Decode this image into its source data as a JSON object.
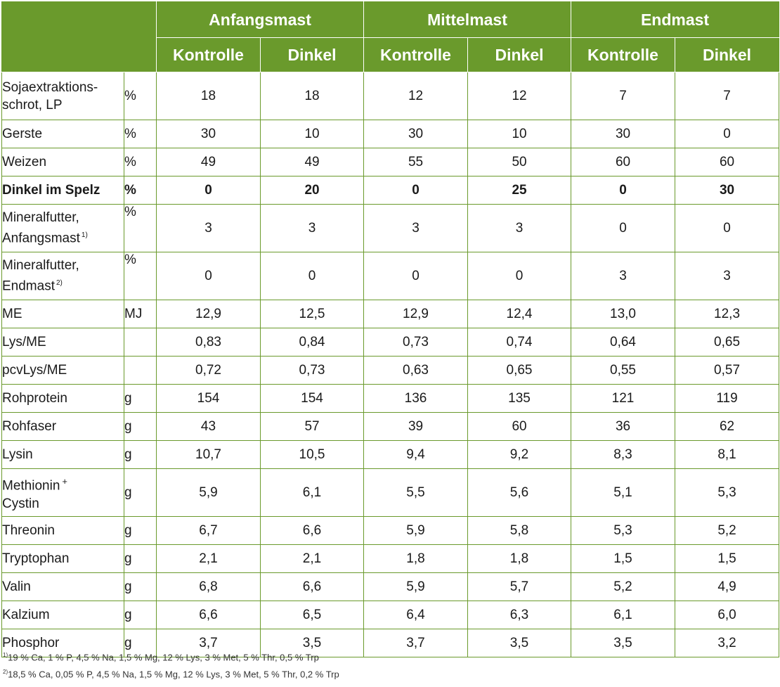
{
  "colors": {
    "header_bg": "#6a9a2c",
    "header_text": "#ffffff",
    "grid": "#6a9a2c"
  },
  "table": {
    "phases": [
      "Anfangsmast",
      "Mittelmast",
      "Endmast"
    ],
    "subheaders": [
      "Kontrolle",
      "Dinkel",
      "Kontrolle",
      "Dinkel",
      "Kontrolle",
      "Dinkel"
    ],
    "rows": [
      {
        "label": "Sojaextraktions-",
        "label2": "schrot, LP",
        "unit": "%",
        "values": [
          "18",
          "18",
          "12",
          "12",
          "7",
          "7"
        ]
      },
      {
        "label": "Gerste",
        "unit": "%",
        "values": [
          "30",
          "10",
          "30",
          "10",
          "30",
          "0"
        ]
      },
      {
        "label": "Weizen",
        "unit": "%",
        "values": [
          "49",
          "49",
          "55",
          "50",
          "60",
          "60"
        ]
      },
      {
        "label": "Dinkel im Spelz",
        "unit": "%",
        "values": [
          "0",
          "20",
          "0",
          "25",
          "0",
          "30"
        ]
      },
      {
        "label": "Mineralfutter,",
        "label2": "Anfangsmast",
        "ref": "1)",
        "unit": "%",
        "values": [
          "3",
          "3",
          "3",
          "3",
          "0",
          "0"
        ]
      },
      {
        "label": "Mineralfutter,",
        "label2": "Endmast",
        "ref": "2)",
        "unit": "%",
        "values": [
          "0",
          "0",
          "0",
          "0",
          "3",
          "3"
        ]
      },
      {
        "label": "ME",
        "unit": "MJ",
        "values": [
          "12,9",
          "12,5",
          "12,9",
          "12,4",
          "13,0",
          "12,3"
        ]
      },
      {
        "label": "Lys/ME",
        "unit": "",
        "values": [
          "0,83",
          "0,84",
          "0,73",
          "0,74",
          "0,64",
          "0,65"
        ]
      },
      {
        "label": "pcvLys/ME",
        "unit": "",
        "values": [
          "0,72",
          "0,73",
          "0,63",
          "0,65",
          "0,55",
          "0,57"
        ]
      },
      {
        "label": "Rohprotein",
        "unit": "g",
        "values": [
          "154",
          "154",
          "136",
          "135",
          "121",
          "119"
        ]
      },
      {
        "label": "Rohfaser",
        "unit": "g",
        "values": [
          "43",
          "57",
          "39",
          "60",
          "36",
          "62"
        ]
      },
      {
        "label": "Lysin",
        "unit": "g",
        "values": [
          "10,7",
          "10,5",
          "9,4",
          "9,2",
          "8,3",
          "8,1"
        ]
      },
      {
        "label": "Methionin",
        "plus": "+",
        "label2": "Cystin",
        "unit": "g",
        "values": [
          "5,9",
          "6,1",
          "5,5",
          "5,6",
          "5,1",
          "5,3"
        ]
      },
      {
        "label": "Threonin",
        "unit": "g",
        "values": [
          "6,7",
          "6,6",
          "5,9",
          "5,8",
          "5,3",
          "5,2"
        ]
      },
      {
        "label": "Tryptophan",
        "unit": "g",
        "values": [
          "2,1",
          "2,1",
          "1,8",
          "1,8",
          "1,5",
          "1,5"
        ]
      },
      {
        "label": "Valin",
        "unit": "g",
        "values": [
          "6,8",
          "6,6",
          "5,9",
          "5,7",
          "5,2",
          "4,9"
        ]
      },
      {
        "label": "Kalzium",
        "unit": "g",
        "values": [
          "6,6",
          "6,5",
          "6,4",
          "6,3",
          "6,1",
          "6,0"
        ]
      },
      {
        "label": "Phosphor",
        "unit": "g",
        "values": [
          "3,7",
          "3,5",
          "3,7",
          "3,5",
          "3,5",
          "3,2"
        ]
      }
    ]
  },
  "footnotes": [
    {
      "mark": "1)",
      "text": "19 % Ca, 1 % P, 4,5 % Na, 1,5 % Mg, 12 % Lys, 3 % Met, 5 % Thr, 0,5 % Trp"
    },
    {
      "mark": "2)",
      "text": "18,5 % Ca, 0,05 % P, 4,5 % Na, 1,5 % Mg, 12 % Lys, 3 % Met, 5 % Thr, 0,2 % Trp"
    }
  ]
}
